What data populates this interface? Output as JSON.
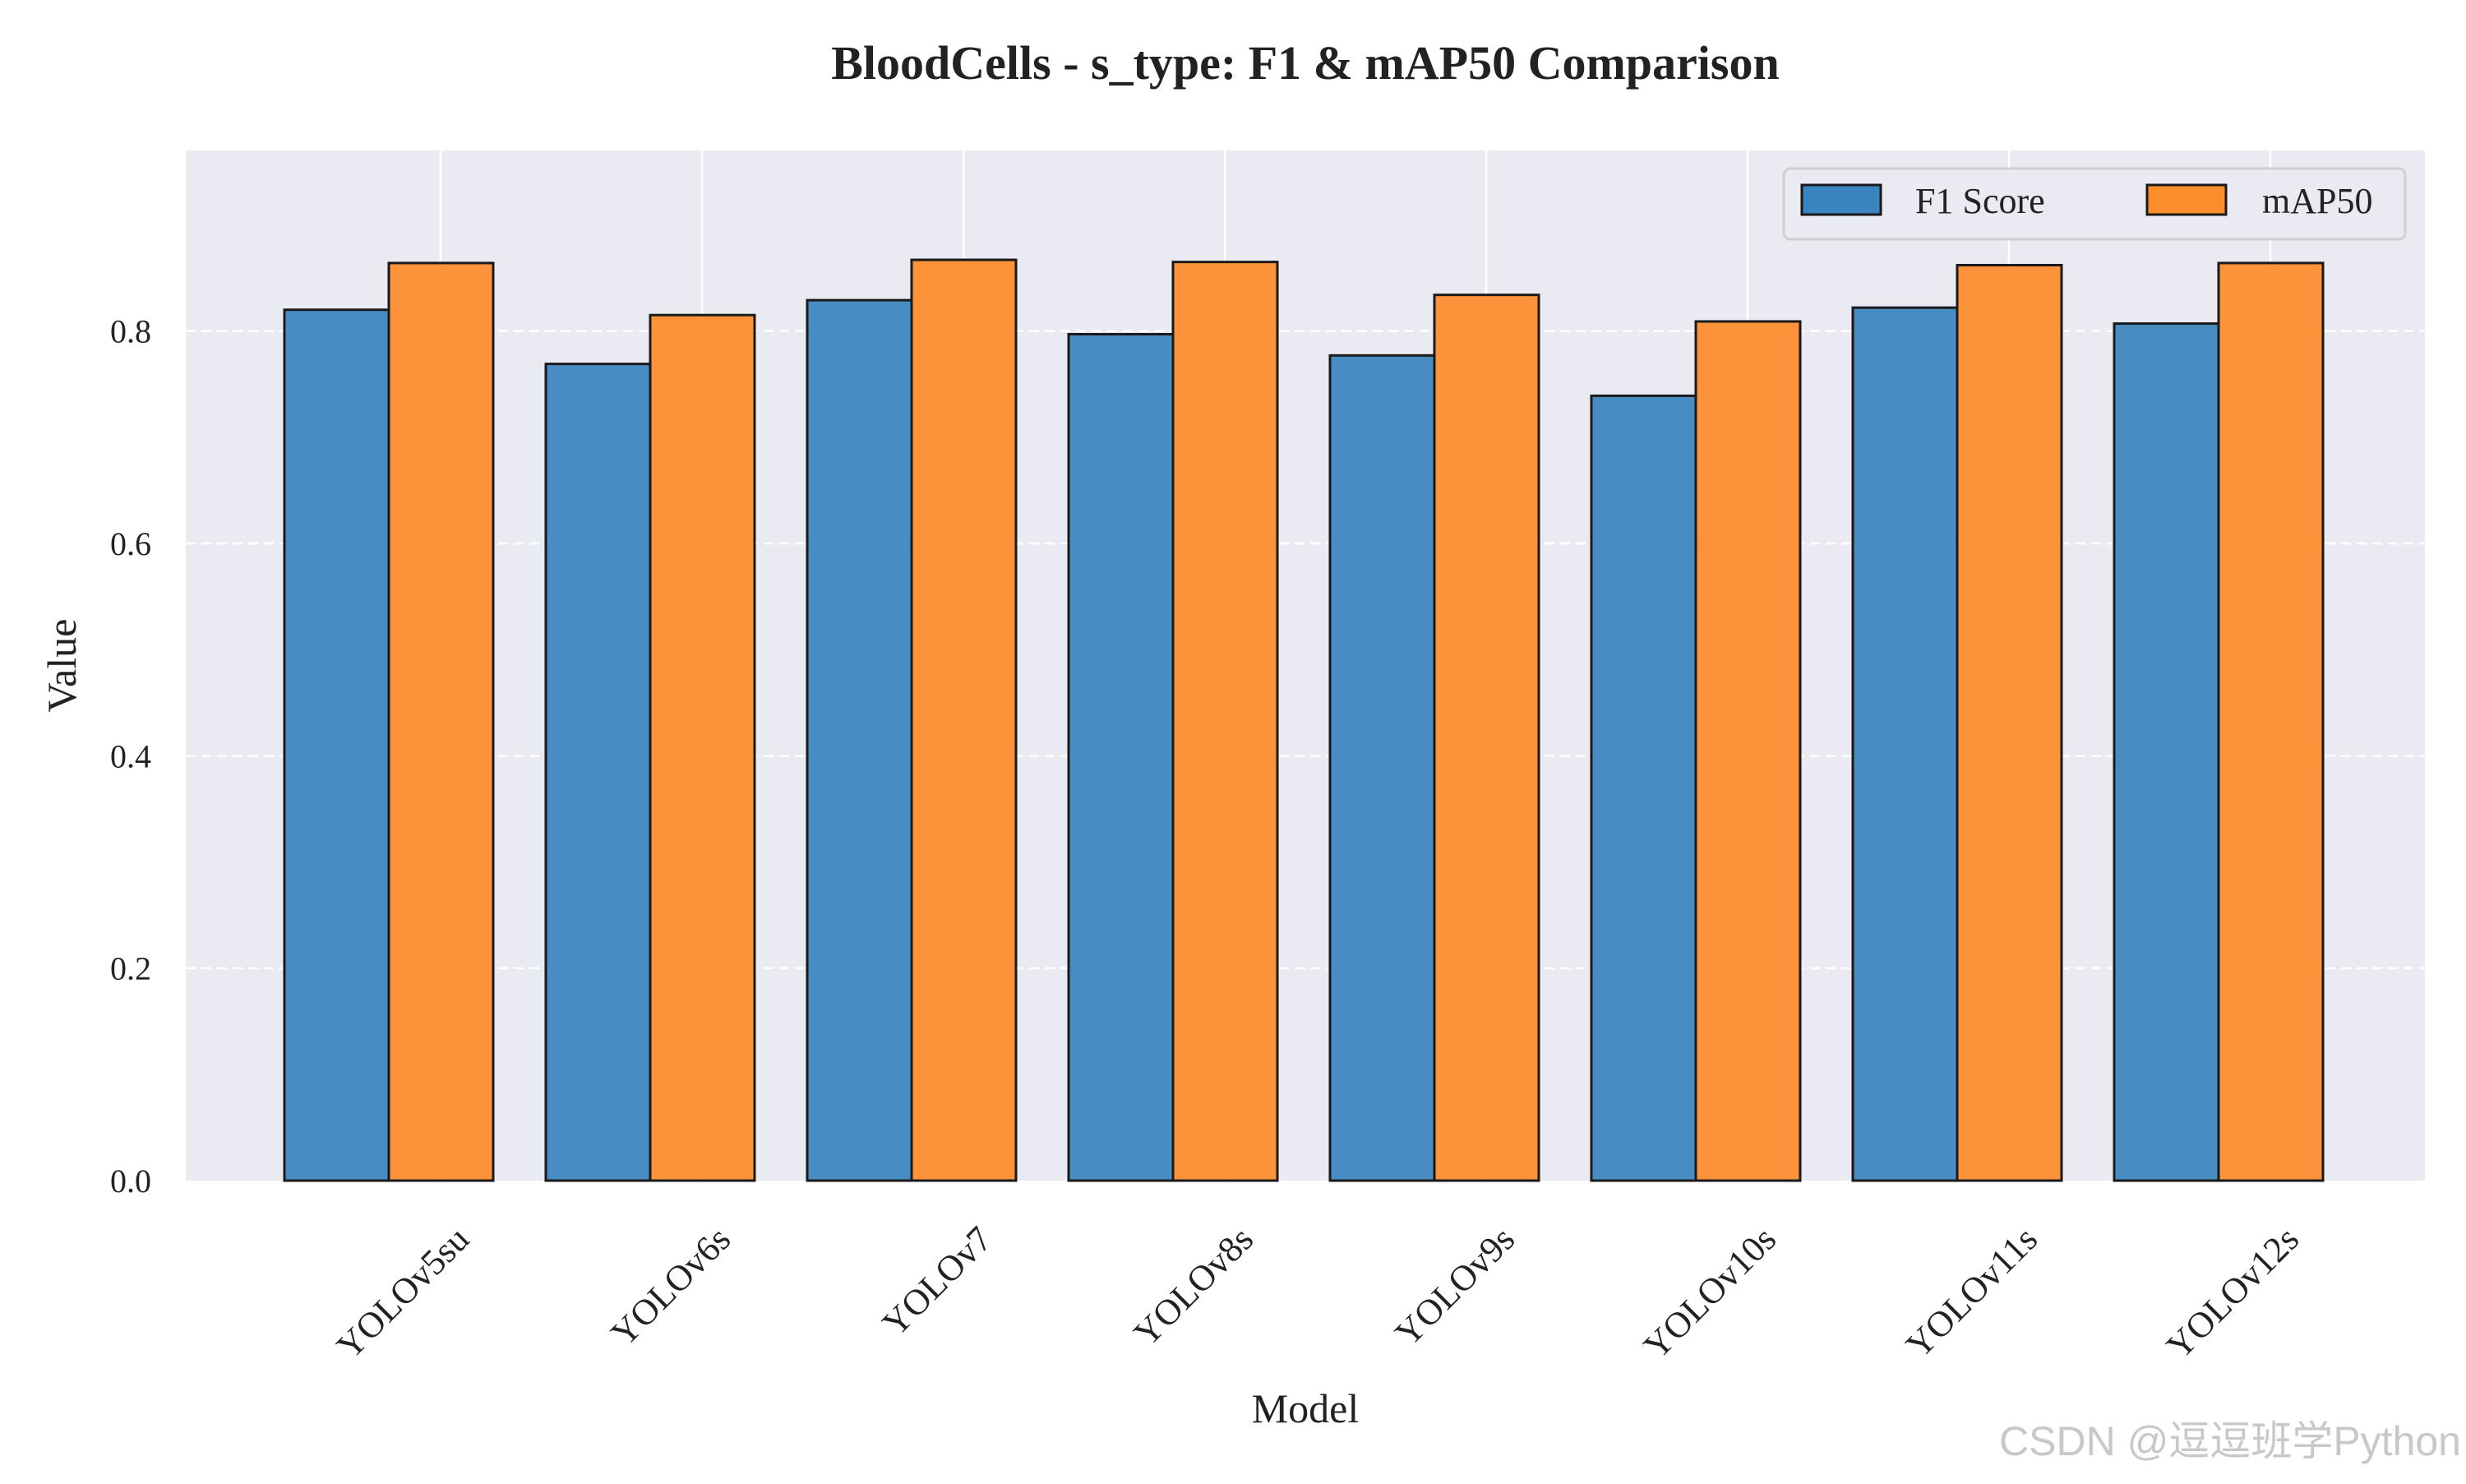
{
  "chart_data": {
    "type": "bar",
    "title": "BloodCells - s_type: F1 & mAP50 Comparison",
    "xlabel": "Model",
    "ylabel": "Value",
    "ylim": [
      0,
      0.97
    ],
    "yticks": [
      "0.0",
      "0.2",
      "0.4",
      "0.6",
      "0.8"
    ],
    "ytick_values": [
      0.0,
      0.2,
      0.4,
      0.6,
      0.8
    ],
    "categories": [
      "YOLOv5su",
      "YOLOv6s",
      "YOLOv7",
      "YOLOv8s",
      "YOLOv9s",
      "YOLOv10s",
      "YOLOv11s",
      "YOLOv12s"
    ],
    "series": [
      {
        "name": "F1 Score",
        "color": "#3a85bf",
        "values": [
          0.82,
          0.769,
          0.829,
          0.797,
          0.777,
          0.739,
          0.822,
          0.807
        ]
      },
      {
        "name": "mAP50",
        "color": "#fd8c2c",
        "values": [
          0.864,
          0.815,
          0.867,
          0.865,
          0.834,
          0.809,
          0.862,
          0.864
        ]
      }
    ],
    "grid": "y-dashed-white, x-solid-white",
    "legend_position": "top-right",
    "background": "#eaeaf2"
  },
  "watermark": "CSDN @逗逗班学Python"
}
